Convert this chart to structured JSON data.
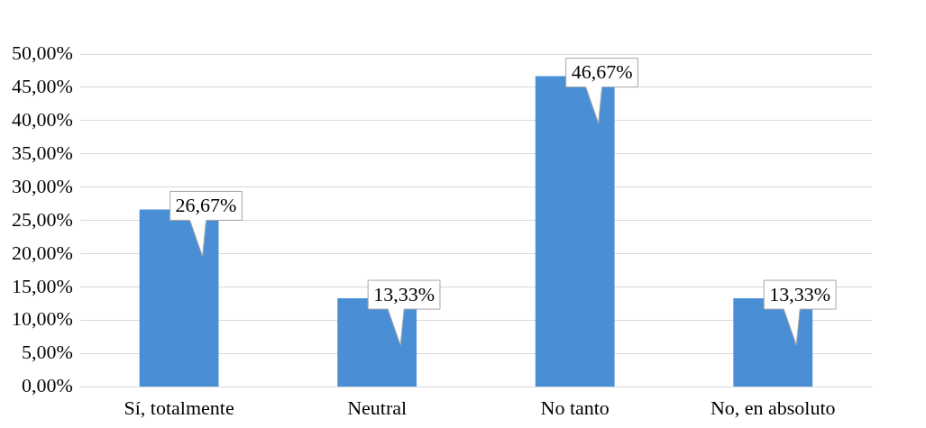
{
  "chart_data": {
    "type": "bar",
    "categories": [
      "Sí, totalmente",
      "Neutral",
      "No tanto",
      "No, en absoluto"
    ],
    "values": [
      26.67,
      13.33,
      46.67,
      13.33
    ],
    "value_labels": [
      "26,67%",
      "13,33%",
      "46,67%",
      "13,33%"
    ],
    "color": "#4a8fd6",
    "ylim": [
      0,
      50
    ],
    "yticks": [
      {
        "value": 0,
        "label": "0,00%"
      },
      {
        "value": 5,
        "label": "5,00%"
      },
      {
        "value": 10,
        "label": "10,00%"
      },
      {
        "value": 15,
        "label": "15,00%"
      },
      {
        "value": 20,
        "label": "20,00%"
      },
      {
        "value": 25,
        "label": "25,00%"
      },
      {
        "value": 30,
        "label": "30,00%"
      },
      {
        "value": 35,
        "label": "35,00%"
      },
      {
        "value": 40,
        "label": "40,00%"
      },
      {
        "value": 45,
        "label": "45,00%"
      },
      {
        "value": 50,
        "label": "50,00%"
      }
    ],
    "grid": "y"
  }
}
